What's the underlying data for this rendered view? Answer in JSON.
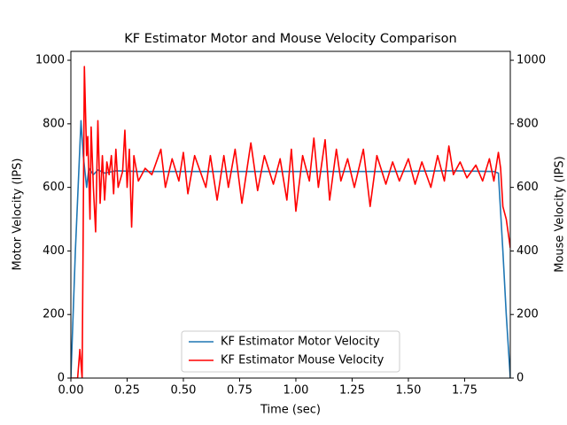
{
  "chart_data": {
    "type": "line",
    "title": "KF Estimator Motor and Mouse Velocity Comparison",
    "xlabel": "Time (sec)",
    "ylabel": "Motor Velocity (IPS)",
    "y2label": "Mouse Velocity (IPS)",
    "xlim": [
      0,
      1.953
    ],
    "ylim": [
      0,
      1028
    ],
    "y2lim": [
      0,
      1028
    ],
    "xticks": [
      {
        "value": 0,
        "label": "0.00"
      },
      {
        "value": 0.25,
        "label": "0.25"
      },
      {
        "value": 0.5,
        "label": "0.50"
      },
      {
        "value": 0.75,
        "label": "0.75"
      },
      {
        "value": 1,
        "label": "1.00"
      },
      {
        "value": 1.25,
        "label": "1.25"
      },
      {
        "value": 1.5,
        "label": "1.50"
      },
      {
        "value": 1.75,
        "label": "1.75"
      }
    ],
    "yticks": [
      0,
      200,
      400,
      600,
      800,
      1000
    ],
    "y2ticks": [
      0,
      200,
      400,
      600,
      800,
      1000
    ],
    "legend": "lower center",
    "series": [
      {
        "name": "KF Estimator Motor Velocity",
        "color": "#1f77b4",
        "axis": "y",
        "x": [
          0,
          0.02,
          0.045,
          0.055,
          0.07,
          0.08,
          0.1,
          0.12,
          0.15,
          0.2,
          0.3,
          0.6,
          1.0,
          1.4,
          1.7,
          1.88,
          1.9,
          1.92,
          1.935,
          1.953
        ],
        "values": [
          0,
          400,
          810,
          700,
          600,
          660,
          640,
          655,
          645,
          652,
          650,
          650,
          650,
          650,
          652,
          650,
          645,
          400,
          200,
          0
        ]
      },
      {
        "name": "KF Estimator Mouse Velocity",
        "color": "#ff0000",
        "axis": "y2",
        "x": [
          0,
          0.03,
          0.04,
          0.05,
          0.06,
          0.07,
          0.075,
          0.085,
          0.09,
          0.1,
          0.11,
          0.12,
          0.13,
          0.14,
          0.15,
          0.16,
          0.17,
          0.18,
          0.19,
          0.2,
          0.21,
          0.23,
          0.24,
          0.25,
          0.26,
          0.27,
          0.28,
          0.3,
          0.33,
          0.36,
          0.4,
          0.42,
          0.45,
          0.48,
          0.5,
          0.52,
          0.55,
          0.6,
          0.62,
          0.65,
          0.68,
          0.7,
          0.73,
          0.76,
          0.8,
          0.83,
          0.86,
          0.9,
          0.93,
          0.96,
          0.98,
          1.0,
          1.03,
          1.06,
          1.08,
          1.1,
          1.13,
          1.15,
          1.18,
          1.2,
          1.23,
          1.26,
          1.3,
          1.33,
          1.36,
          1.4,
          1.43,
          1.46,
          1.5,
          1.53,
          1.56,
          1.6,
          1.63,
          1.66,
          1.68,
          1.7,
          1.73,
          1.76,
          1.8,
          1.83,
          1.86,
          1.88,
          1.9,
          1.91,
          1.92,
          1.935,
          1.953
        ],
        "values": [
          0,
          0,
          90,
          0,
          980,
          700,
          760,
          500,
          790,
          600,
          460,
          810,
          550,
          700,
          560,
          680,
          640,
          700,
          580,
          720,
          600,
          650,
          780,
          600,
          720,
          475,
          700,
          620,
          660,
          640,
          720,
          600,
          690,
          620,
          710,
          580,
          700,
          600,
          700,
          560,
          700,
          600,
          720,
          550,
          740,
          590,
          700,
          610,
          690,
          560,
          720,
          525,
          700,
          620,
          755,
          600,
          750,
          560,
          720,
          620,
          690,
          600,
          720,
          540,
          700,
          610,
          680,
          620,
          690,
          610,
          680,
          600,
          700,
          620,
          730,
          640,
          680,
          630,
          670,
          620,
          690,
          620,
          710,
          660,
          540,
          500,
          410
        ]
      }
    ]
  }
}
